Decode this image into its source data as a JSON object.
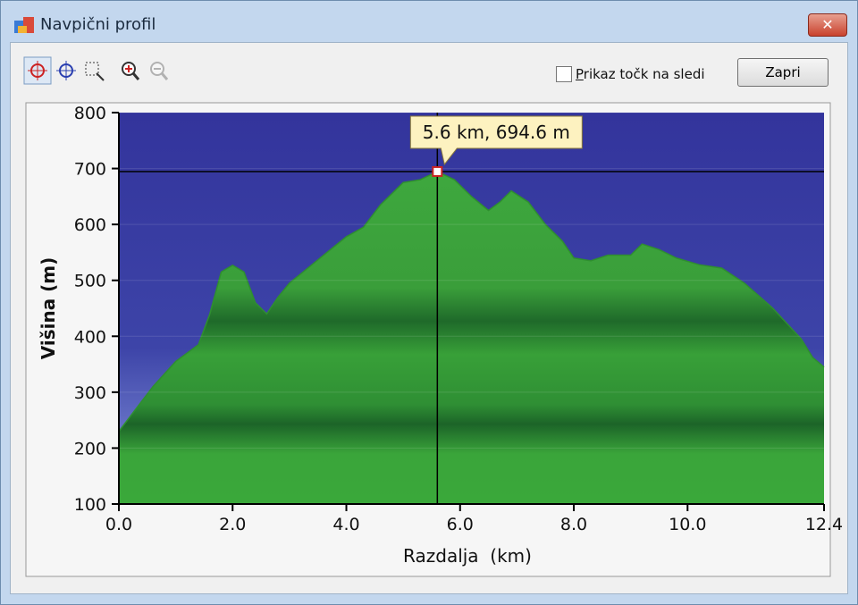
{
  "window": {
    "title": "Navpični profil"
  },
  "toolbar": {
    "checkbox_label": "Prikaz točk na sledi",
    "button": "Zapri"
  },
  "chart_data": {
    "type": "area",
    "x_label": "Razdalja  (km)",
    "y_label": "Višina (m)",
    "x": [
      0,
      0.3,
      0.6,
      1.0,
      1.4,
      1.6,
      1.8,
      2.0,
      2.2,
      2.4,
      2.6,
      2.8,
      3.0,
      3.3,
      3.6,
      4.0,
      4.3,
      4.6,
      5.0,
      5.3,
      5.6,
      5.9,
      6.2,
      6.5,
      6.7,
      6.9,
      7.2,
      7.5,
      7.8,
      8.0,
      8.3,
      8.6,
      9.0,
      9.2,
      9.5,
      9.8,
      10.2,
      10.6,
      11.0,
      11.5,
      12.0,
      12.2,
      12.4
    ],
    "values": [
      230,
      270,
      310,
      355,
      385,
      440,
      515,
      527,
      515,
      460,
      440,
      470,
      495,
      520,
      545,
      578,
      595,
      635,
      675,
      680,
      694.6,
      680,
      650,
      625,
      640,
      660,
      640,
      600,
      570,
      540,
      535,
      545,
      545,
      565,
      555,
      540,
      528,
      522,
      495,
      450,
      395,
      362,
      345
    ],
    "color": "#2f8f2f",
    "xlim": [
      0,
      12.4
    ],
    "xticks": [
      {
        "value": 0,
        "label": "0.0"
      },
      {
        "value": 2,
        "label": "2.0"
      },
      {
        "value": 4,
        "label": "4.0"
      },
      {
        "value": 6,
        "label": "6.0"
      },
      {
        "value": 8,
        "label": "8.0"
      },
      {
        "value": 10,
        "label": "10.0"
      },
      12.4
    ],
    "ylim": [
      100,
      800
    ],
    "yticks": [
      100,
      200,
      300,
      400,
      500,
      600,
      700,
      800
    ],
    "cursor": {
      "x": 5.6,
      "y": 694.6,
      "label": "5.6 km, 694.6 m"
    }
  }
}
